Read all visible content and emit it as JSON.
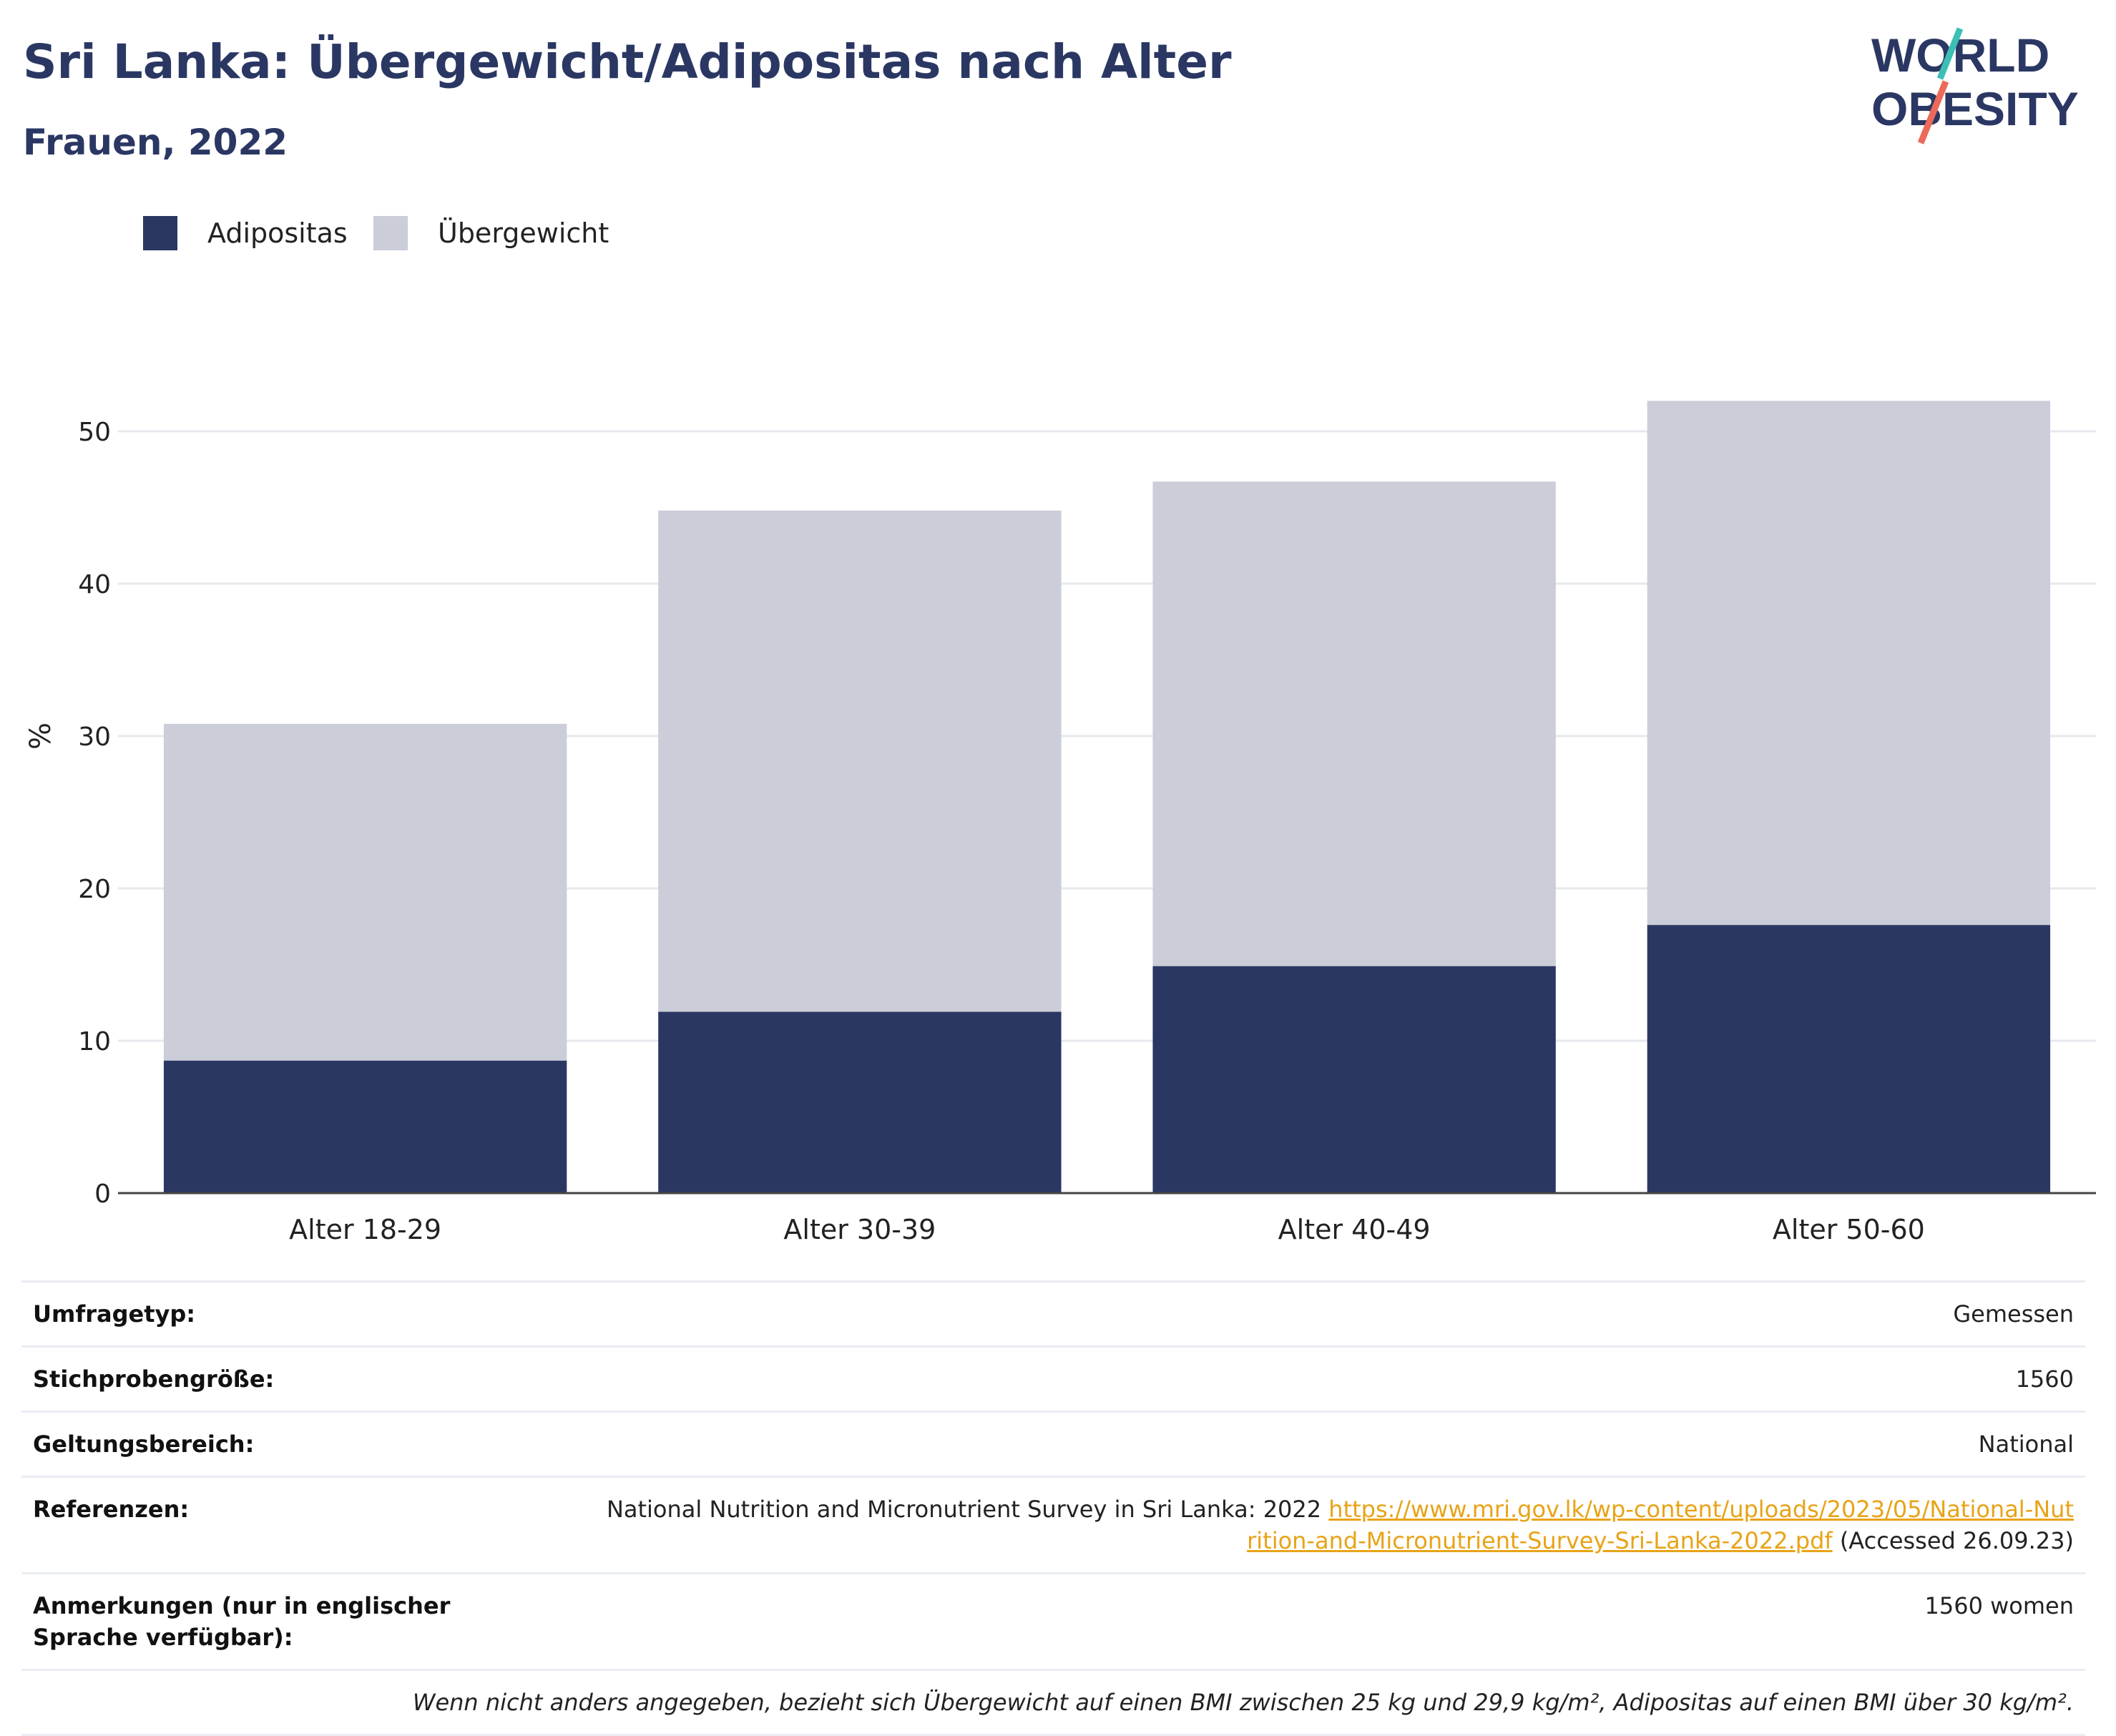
{
  "header": {
    "title": "Sri Lanka: Übergewicht/Adipositas nach Alter",
    "subtitle": "Frauen, 2022"
  },
  "logo": {
    "line1": "WORLD",
    "line2": "OBESITY"
  },
  "colors": {
    "obesity": "#2b3763",
    "overweight": "#cbcdd8",
    "title": "#2b3763",
    "link": "#e8a317",
    "logo_teal": "#3cbfb5",
    "logo_coral": "#ec6a5a"
  },
  "chart_data": {
    "type": "bar",
    "stacked": true,
    "title": "Sri Lanka: Übergewicht/Adipositas nach Alter",
    "subtitle": "Frauen, 2022",
    "xlabel": "",
    "ylabel": "%",
    "categories": [
      "Alter 18-29",
      "Alter 30-39",
      "Alter 40-49",
      "Alter 50-60"
    ],
    "series": [
      {
        "name": "Adipositas",
        "values": [
          8.7,
          11.9,
          14.9,
          17.6
        ]
      },
      {
        "name": "Übergewicht",
        "values": [
          22.1,
          32.9,
          31.8,
          34.4
        ]
      }
    ],
    "totals": [
      30.8,
      44.8,
      46.7,
      52.0
    ],
    "yticks": [
      0,
      10,
      20,
      30,
      40,
      50
    ],
    "ylim": [
      0,
      54
    ],
    "grid": true,
    "legend_position": "top-left"
  },
  "meta": {
    "rows": [
      {
        "label": "Umfragetyp:",
        "value": "Gemessen"
      },
      {
        "label": "Stichprobengröße:",
        "value": "1560"
      },
      {
        "label": "Geltungsbereich:",
        "value": "National"
      }
    ],
    "references": {
      "label": "Referenzen:",
      "text": "National Nutrition and Micronutrient Survey in Sri Lanka: 2022",
      "link": "https://www.mri.gov.lk/wp-content/uploads/2023/05/National-Nutrition-and-Micronutrient-Survey-Sri-Lanka-2022.pdf",
      "accessed": "(Accessed 26.09.23)"
    },
    "notes": {
      "label": "Anmerkungen (nur in englischer Sprache verfügbar):",
      "value": "1560 women"
    },
    "footnote": "Wenn nicht anders angegeben, bezieht sich Übergewicht auf einen BMI zwischen 25 kg und 29,9 kg/m², Adipositas auf einen BMI über 30 kg/m²."
  }
}
